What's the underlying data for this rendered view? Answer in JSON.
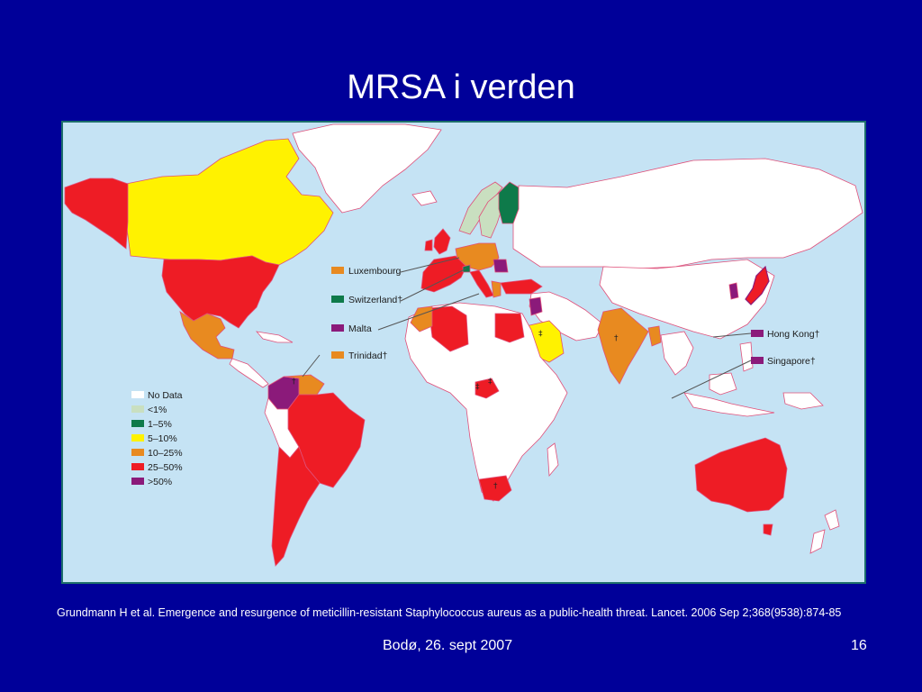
{
  "slide": {
    "title": "MRSA i verden",
    "citation": "Grundmann H et al. Emergence and resurgence of meticillin-resistant Staphylococcus aureus as a public-health threat. Lancet. 2006 Sep 2;368(9538):874-85",
    "footer_center": "Bodø, 26. sept 2007",
    "page_number": "16"
  },
  "colors": {
    "background": "#000099",
    "ocean": "#c5e3f4",
    "no_data": "#ffffff",
    "lt1": "#c9dfc0",
    "p1_5": "#0e7a4a",
    "p5_10": "#fff200",
    "p10_25": "#e88a20",
    "p25_50": "#ee1c25",
    "gt50": "#8b1a7a"
  },
  "legend": {
    "items": [
      {
        "label": "No Data",
        "color": "#ffffff"
      },
      {
        "label": "<1%",
        "color": "#c9dfc0"
      },
      {
        "label": "1–5%",
        "color": "#0e7a4a"
      },
      {
        "label": "5–10%",
        "color": "#fff200"
      },
      {
        "label": "10–25%",
        "color": "#e88a20"
      },
      {
        "label": "25–50%",
        "color": "#ee1c25"
      },
      {
        "label": ">50%",
        "color": "#8b1a7a"
      }
    ]
  },
  "callouts": {
    "luxembourg": "Luxembourg",
    "switzerland": "Switzerland†",
    "malta": "Malta",
    "trinidad": "Trinidad†",
    "hong_kong": "Hong Kong†",
    "singapore": "Singapore†"
  },
  "markers": {
    "dagger": "†",
    "double_dagger": "‡"
  }
}
